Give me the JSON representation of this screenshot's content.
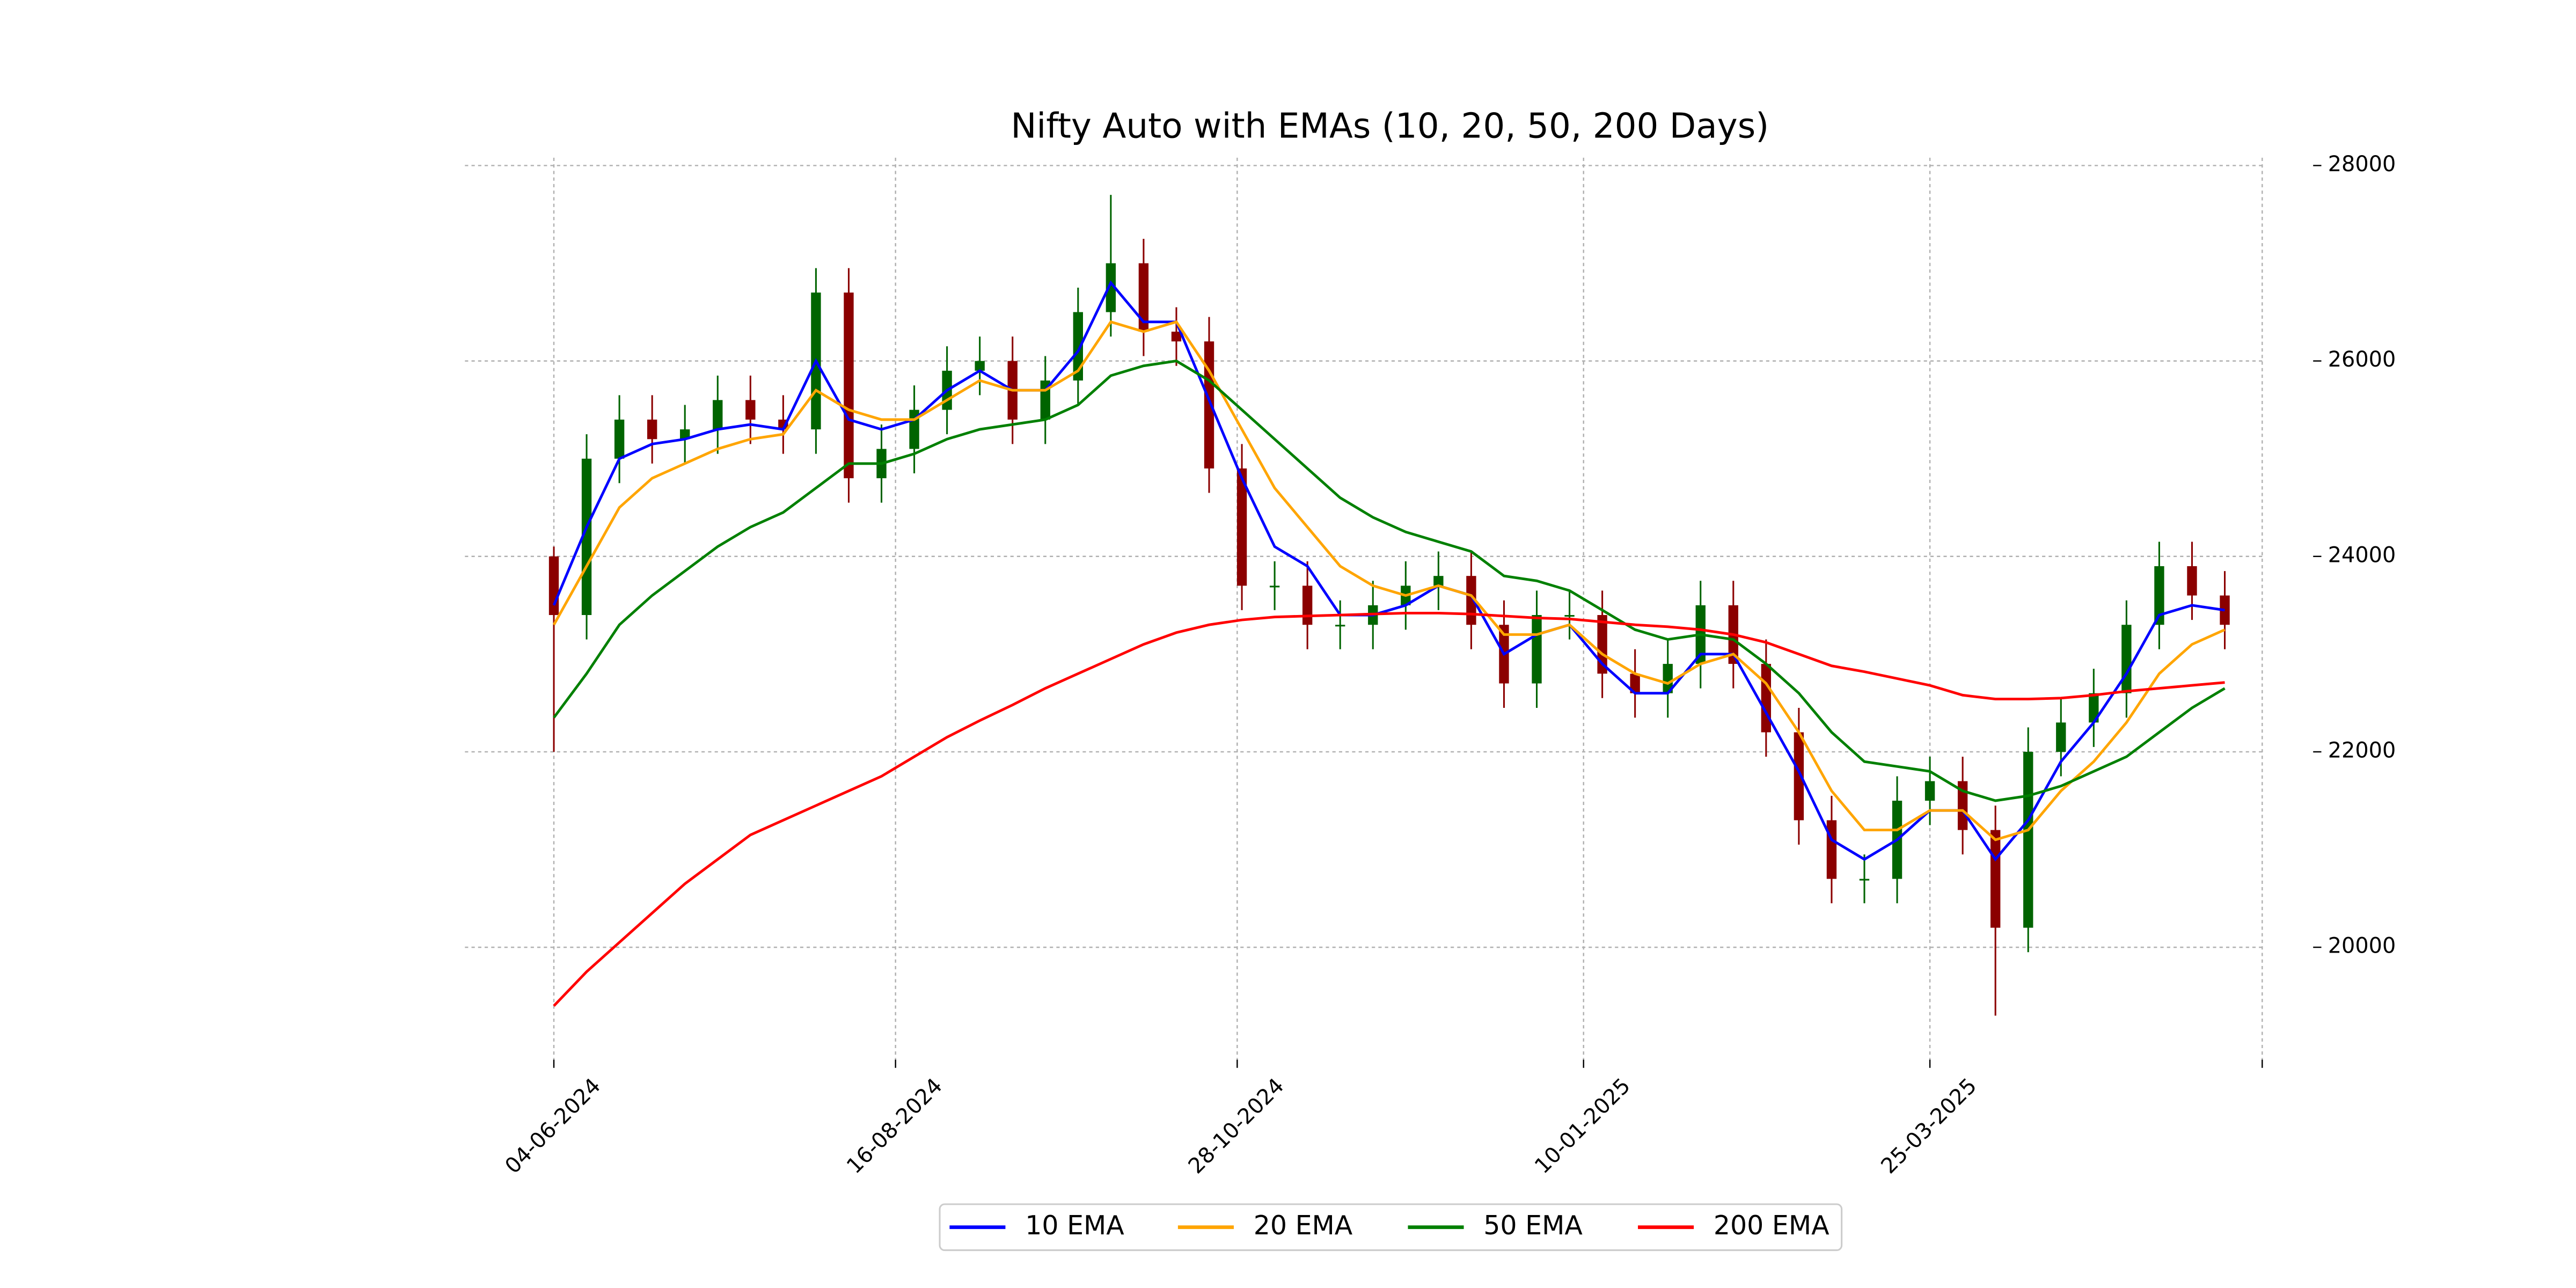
{
  "chart_data": {
    "type": "candlestick",
    "title": "Nifty Auto with EMAs (10, 20, 50, 200 Days)",
    "x": [
      "04-06-2024",
      "11-06-2024",
      "18-06-2024",
      "25-06-2024",
      "02-07-2024",
      "09-07-2024",
      "16-07-2024",
      "23-07-2024",
      "30-07-2024",
      "06-08-2024",
      "13-08-2024",
      "20-08-2024",
      "27-08-2024",
      "03-09-2024",
      "10-09-2024",
      "17-09-2024",
      "24-09-2024",
      "01-10-2024",
      "08-10-2024",
      "15-10-2024",
      "22-10-2024",
      "29-10-2024",
      "05-11-2024",
      "12-11-2024",
      "19-11-2024",
      "26-11-2024",
      "03-12-2024",
      "10-12-2024",
      "17-12-2024",
      "24-12-2024",
      "31-12-2024",
      "07-01-2025",
      "14-01-2025",
      "21-01-2025",
      "28-01-2025",
      "04-02-2025",
      "11-02-2025",
      "18-02-2025",
      "25-02-2025",
      "04-03-2025",
      "11-03-2025",
      "18-03-2025",
      "25-03-2025",
      "01-04-2025",
      "08-04-2025",
      "15-04-2025",
      "22-04-2025",
      "29-04-2025",
      "06-05-2025",
      "13-05-2025",
      "20-05-2025",
      "27-05-2025"
    ],
    "candles": {
      "open": [
        24000,
        23400,
        25000,
        25400,
        25200,
        25300,
        25600,
        25400,
        25300,
        26700,
        24800,
        25100,
        25500,
        25900,
        26000,
        25400,
        25800,
        26500,
        27000,
        26300,
        26200,
        24900,
        23700,
        23700,
        23300,
        23300,
        23500,
        23700,
        23800,
        23300,
        22700,
        23400,
        23400,
        22800,
        22600,
        22900,
        23500,
        22900,
        22200,
        21300,
        20700,
        20700,
        21500,
        21700,
        21200,
        20200,
        22000,
        22300,
        22600,
        23300,
        23900,
        23600
      ],
      "high": [
        24100,
        25250,
        25650,
        25650,
        25550,
        25850,
        25850,
        25650,
        26950,
        26950,
        25350,
        25750,
        26150,
        26250,
        26250,
        26050,
        26750,
        27700,
        27250,
        26550,
        26450,
        25150,
        23950,
        23950,
        23550,
        23750,
        23950,
        24050,
        24050,
        23550,
        23650,
        23650,
        23650,
        23050,
        23150,
        23750,
        23750,
        23150,
        22450,
        21550,
        20950,
        21750,
        21950,
        21950,
        21450,
        22250,
        22550,
        22850,
        23550,
        24150,
        24150,
        23850
      ],
      "low": [
        22000,
        23150,
        24750,
        24950,
        24950,
        25050,
        25150,
        25050,
        25050,
        24550,
        24550,
        24850,
        25250,
        25650,
        25150,
        25150,
        25550,
        26250,
        26050,
        25950,
        24650,
        23450,
        23450,
        23050,
        23050,
        23050,
        23250,
        23450,
        23050,
        22450,
        22450,
        23150,
        22550,
        22350,
        22350,
        22650,
        22650,
        21950,
        21050,
        20450,
        20450,
        20450,
        21250,
        20950,
        19300,
        19950,
        21750,
        22050,
        22350,
        23050,
        23350,
        23050
      ],
      "close": [
        23400,
        25000,
        25400,
        25200,
        25300,
        25600,
        25400,
        25300,
        26700,
        24800,
        25100,
        25500,
        25900,
        26000,
        25400,
        25800,
        26500,
        27000,
        26300,
        26200,
        24900,
        23700,
        23700,
        23300,
        23300,
        23500,
        23700,
        23800,
        23300,
        22700,
        23400,
        23400,
        22800,
        22600,
        22900,
        23500,
        22900,
        22200,
        21300,
        20700,
        20700,
        21500,
        21700,
        21200,
        20200,
        22000,
        22300,
        22600,
        23300,
        23900,
        23600,
        23300
      ],
      "up_color": "#006400",
      "down_color": "#8b0000"
    },
    "series": [
      {
        "name": "10 EMA",
        "color": "#0000ff",
        "values": [
          23500,
          24300,
          25000,
          25150,
          25200,
          25300,
          25350,
          25300,
          26000,
          25400,
          25300,
          25400,
          25700,
          25900,
          25700,
          25700,
          26100,
          26800,
          26400,
          26400,
          25600,
          24800,
          24100,
          23900,
          23400,
          23400,
          23500,
          23700,
          23600,
          23000,
          23200,
          23300,
          22900,
          22600,
          22600,
          23000,
          23000,
          22400,
          21800,
          21100,
          20900,
          21100,
          21400,
          21400,
          20900,
          21300,
          21900,
          22300,
          22800,
          23400,
          23500,
          23450
        ]
      },
      {
        "name": "20 EMA",
        "color": "#ffa500",
        "values": [
          23300,
          23900,
          24500,
          24800,
          24950,
          25100,
          25200,
          25250,
          25700,
          25500,
          25400,
          25400,
          25600,
          25800,
          25700,
          25700,
          25900,
          26400,
          26300,
          26400,
          25900,
          25300,
          24700,
          24300,
          23900,
          23700,
          23600,
          23700,
          23600,
          23200,
          23200,
          23300,
          23000,
          22800,
          22700,
          22900,
          23000,
          22700,
          22200,
          21600,
          21200,
          21200,
          21400,
          21400,
          21100,
          21200,
          21600,
          21900,
          22300,
          22800,
          23100,
          23250
        ]
      },
      {
        "name": "50 EMA",
        "color": "#008000",
        "values": [
          22350,
          22800,
          23300,
          23600,
          23850,
          24100,
          24300,
          24450,
          24700,
          24950,
          24950,
          25050,
          25200,
          25300,
          25350,
          25400,
          25550,
          25850,
          25950,
          26000,
          25800,
          25500,
          25200,
          24900,
          24600,
          24400,
          24250,
          24150,
          24050,
          23800,
          23750,
          23650,
          23450,
          23250,
          23150,
          23200,
          23150,
          22900,
          22600,
          22200,
          21900,
          21850,
          21800,
          21600,
          21500,
          21550,
          21650,
          21800,
          21950,
          22200,
          22450,
          22650
        ]
      },
      {
        "name": "200 EMA",
        "color": "#ff0000",
        "values": [
          19400,
          19750,
          20050,
          20350,
          20650,
          20900,
          21150,
          21300,
          21450,
          21600,
          21750,
          21950,
          22150,
          22320,
          22480,
          22650,
          22800,
          22950,
          23100,
          23220,
          23300,
          23350,
          23380,
          23390,
          23400,
          23410,
          23420,
          23420,
          23410,
          23390,
          23370,
          23360,
          23330,
          23300,
          23280,
          23250,
          23200,
          23120,
          23000,
          22880,
          22820,
          22750,
          22680,
          22580,
          22540,
          22540,
          22550,
          22580,
          22620,
          22650,
          22680,
          22710
        ]
      }
    ],
    "xlim": [
      "16-05-2024",
      "04-06-2025"
    ],
    "xticks": [
      "04-06-2024",
      "16-08-2024",
      "28-10-2024",
      "10-01-2025",
      "25-03-2025",
      {
        "value": "04-06-2025",
        "label": null
      }
    ],
    "ylim": [
      18850,
      28080
    ],
    "yticks": [
      20000,
      22000,
      24000,
      26000,
      28000
    ],
    "grid": true,
    "legend": "lower center"
  }
}
